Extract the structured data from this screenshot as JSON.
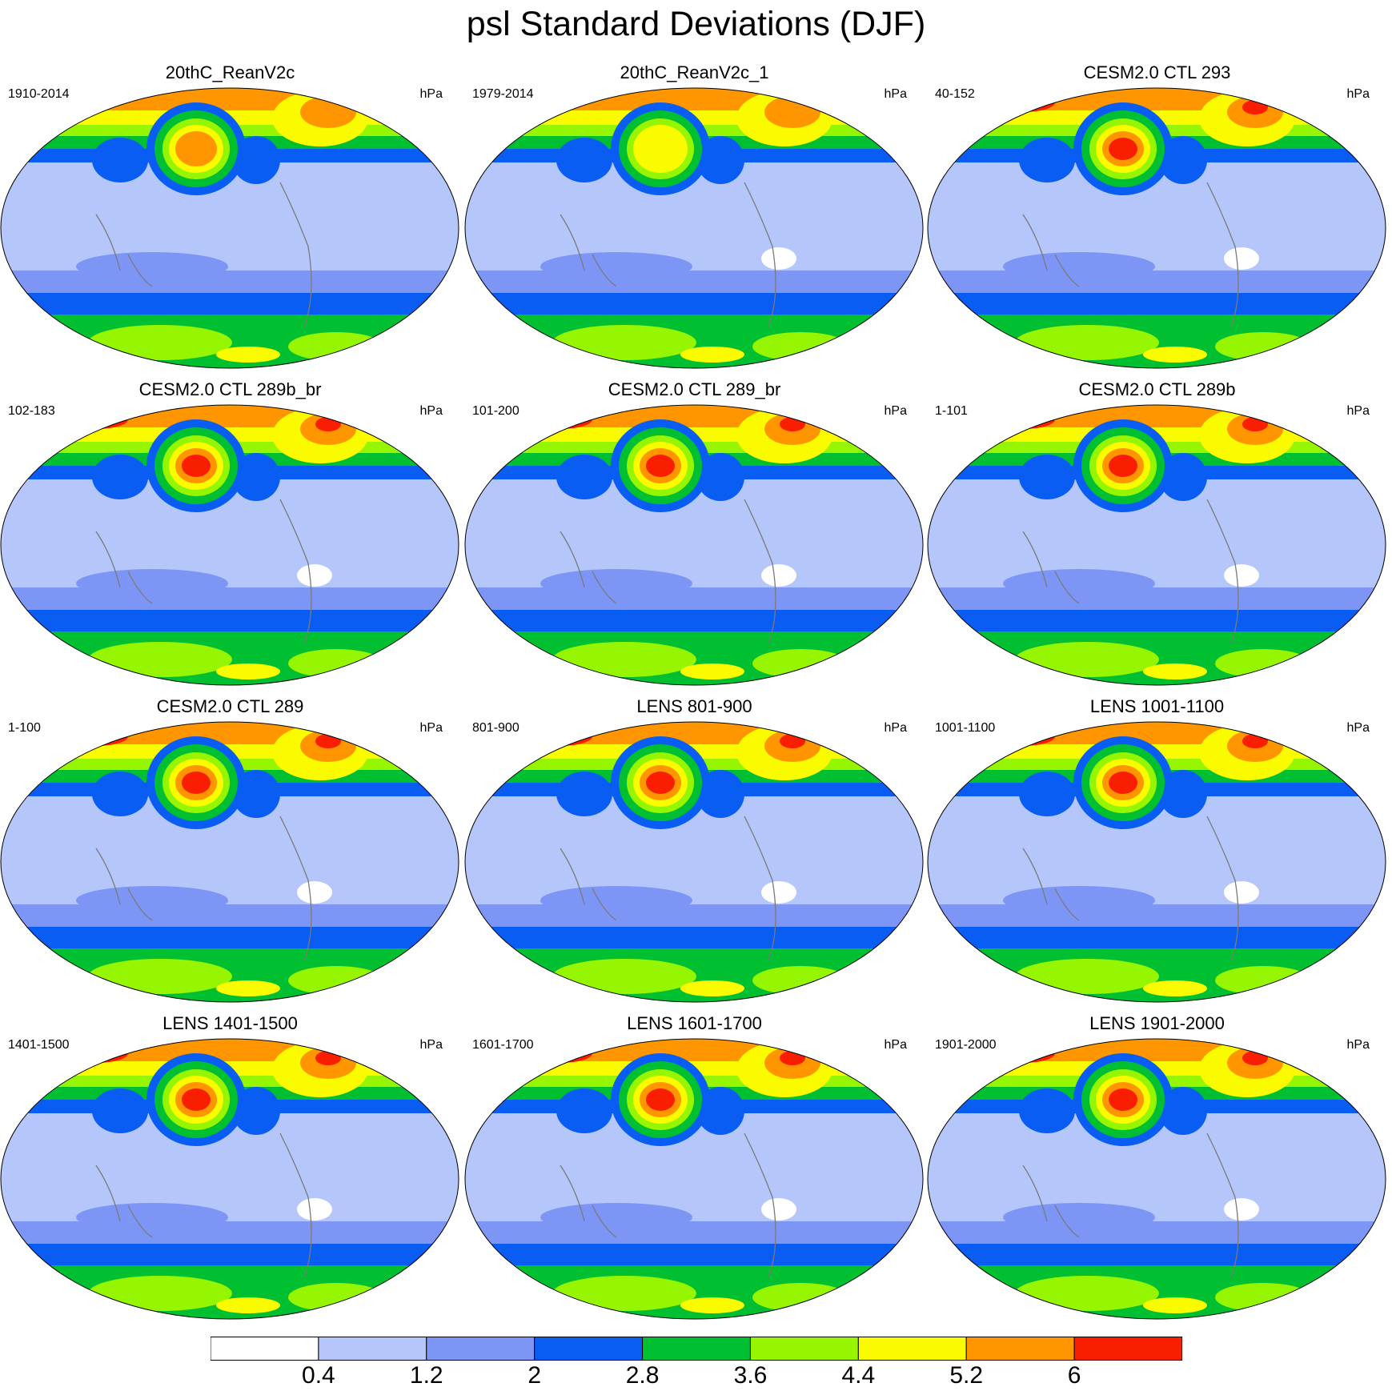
{
  "title": "psl Standard Deviations (DJF)",
  "panels": [
    {
      "title": "20thC_ReanV2c",
      "period": "1910-2014",
      "units": "hPa"
    },
    {
      "title": "20thC_ReanV2c_1",
      "period": "1979-2014",
      "units": "hPa"
    },
    {
      "title": "CESM2.0 CTL 293",
      "period": "40-152",
      "units": "hPa"
    },
    {
      "title": "CESM2.0 CTL 289b_br",
      "period": "102-183",
      "units": "hPa"
    },
    {
      "title": "CESM2.0 CTL 289_br",
      "period": "101-200",
      "units": "hPa"
    },
    {
      "title": "CESM2.0 CTL 289b",
      "period": "1-101",
      "units": "hPa"
    },
    {
      "title": "CESM2.0 CTL 289",
      "period": "1-100",
      "units": "hPa"
    },
    {
      "title": "LENS 801-900",
      "period": "801-900",
      "units": "hPa"
    },
    {
      "title": "LENS 1001-1100",
      "period": "1001-1100",
      "units": "hPa"
    },
    {
      "title": "LENS 1401-1500",
      "period": "1401-1500",
      "units": "hPa"
    },
    {
      "title": "LENS 1601-1700",
      "period": "1601-1700",
      "units": "hPa"
    },
    {
      "title": "LENS 1901-2000",
      "period": "1901-2000",
      "units": "hPa"
    }
  ],
  "chart_data": {
    "type": "heatmap",
    "title": "psl Standard Deviations (DJF)",
    "units": "hPa",
    "projection": "global map (Robinson-like), centered on Pacific",
    "colorbar": {
      "levels": [
        "0.4",
        "1.2",
        "2",
        "2.8",
        "3.6",
        "4.4",
        "5.2",
        "6"
      ],
      "colors": [
        "#ffffff",
        "#b4c6fa",
        "#7d96f5",
        "#0a5df2",
        "#00c032",
        "#96f500",
        "#fbfb00",
        "#ff9600",
        "#fa1e00"
      ]
    },
    "panels": [
      {
        "name": "20thC_ReanV2c",
        "period": "1910-2014",
        "north_pacific_max_level": 7,
        "tropical_white_patch": false
      },
      {
        "name": "20thC_ReanV2c_1",
        "period": "1979-2014",
        "north_pacific_max_level": 6,
        "tropical_white_patch": true
      },
      {
        "name": "CESM2.0 CTL 293",
        "period": "40-152",
        "north_pacific_max_level": 8,
        "tropical_white_patch": true
      },
      {
        "name": "CESM2.0 CTL 289b_br",
        "period": "102-183",
        "north_pacific_max_level": 8,
        "tropical_white_patch": true
      },
      {
        "name": "CESM2.0 CTL 289_br",
        "period": "101-200",
        "north_pacific_max_level": 8,
        "tropical_white_patch": true
      },
      {
        "name": "CESM2.0 CTL 289b",
        "period": "1-101",
        "north_pacific_max_level": 8,
        "tropical_white_patch": true
      },
      {
        "name": "CESM2.0 CTL 289",
        "period": "1-100",
        "north_pacific_max_level": 8,
        "tropical_white_patch": true
      },
      {
        "name": "LENS 801-900",
        "period": "801-900",
        "north_pacific_max_level": 8,
        "tropical_white_patch": true
      },
      {
        "name": "LENS 1001-1100",
        "period": "1001-1100",
        "north_pacific_max_level": 8,
        "tropical_white_patch": true
      },
      {
        "name": "LENS 1401-1500",
        "period": "1401-1500",
        "north_pacific_max_level": 8,
        "tropical_white_patch": true
      },
      {
        "name": "LENS 1601-1700",
        "period": "1601-1700",
        "north_pacific_max_level": 8,
        "tropical_white_patch": true
      },
      {
        "name": "LENS 1901-2000",
        "period": "1901-2000",
        "north_pacific_max_level": 8,
        "tropical_white_patch": true
      }
    ]
  }
}
